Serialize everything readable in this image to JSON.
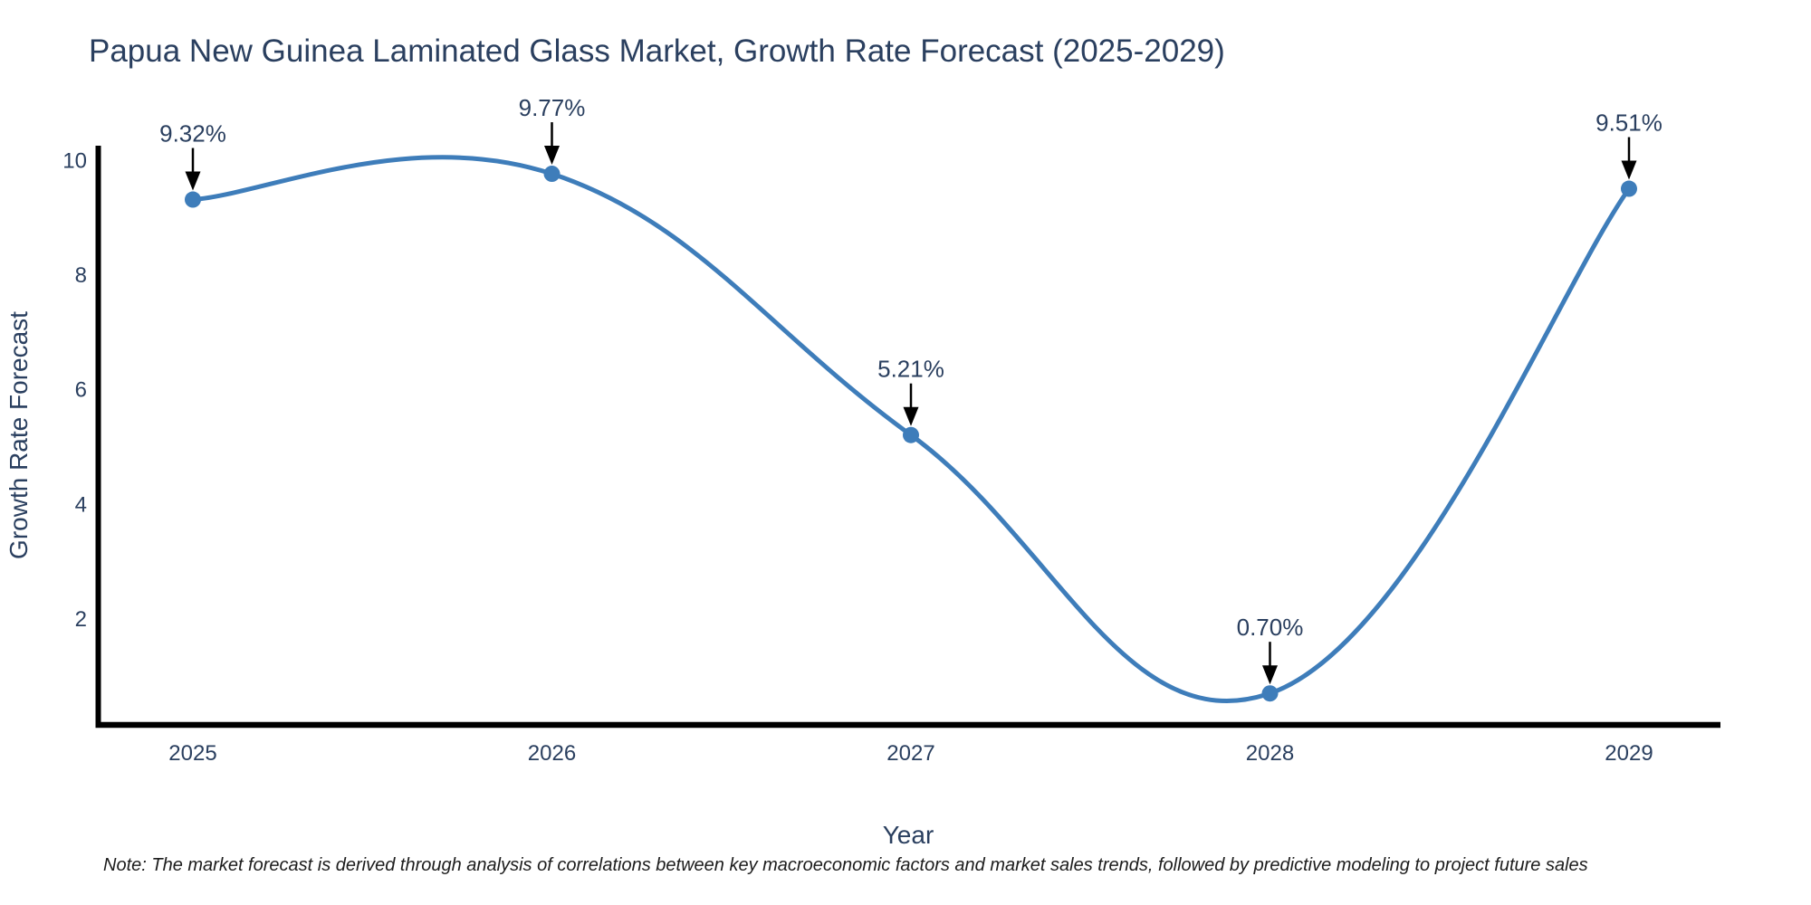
{
  "title": "Papua New Guinea Laminated Glass Market, Growth Rate Forecast (2025-2029)",
  "note": "Note: The market forecast is derived through analysis of correlations between key macroeconomic factors and market sales trends, followed by predictive modeling to project future sales",
  "chart_data": {
    "type": "line",
    "title": "Papua New Guinea Laminated Glass Market, Growth Rate Forecast (2025-2029)",
    "xlabel": "Year",
    "ylabel": "Growth Rate Forecast",
    "categories": [
      2025,
      2026,
      2027,
      2028,
      2029
    ],
    "values": [
      9.32,
      9.77,
      5.21,
      0.7,
      9.51
    ],
    "point_labels": [
      "9.32%",
      "9.77%",
      "5.21%",
      "0.70%",
      "9.51%"
    ],
    "yticks": [
      2,
      4,
      6,
      8,
      10
    ],
    "ylim": [
      0.15,
      10.25
    ],
    "line_shape": "spline",
    "grid": false,
    "legend": "none",
    "annotations_have_arrows": true,
    "colors": {
      "line": "#3E7DBA",
      "marker": "#3E7DBA",
      "axis": "#000000",
      "arrow": "#000000",
      "text": "#2a3f5f",
      "note_text": "#1c1c1c",
      "background": "#ffffff"
    }
  }
}
